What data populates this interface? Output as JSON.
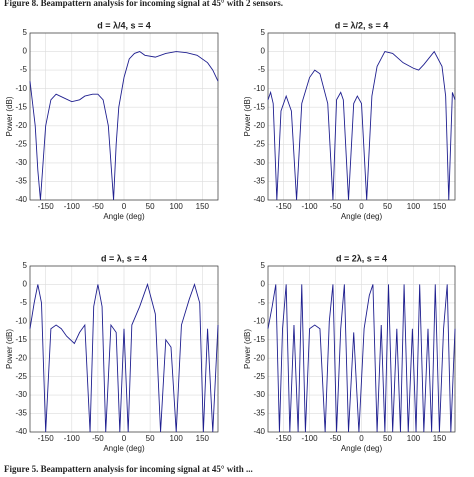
{
  "caption_top": "Figure 8. Beampattern analysis for incoming signal at 45° with 2 sensors.",
  "caption_bottom": "Figure 5. Beampattern analysis for incoming signal at 45° with ...",
  "chart_data": [
    {
      "type": "line",
      "title": "d = λ/4, s = 4",
      "x_label": "Angle (deg)",
      "y_label": "Power (dB)",
      "color": "#1f1f8f",
      "grid": true,
      "xlim": [
        -180,
        180
      ],
      "ylim": [
        -40,
        5
      ],
      "xticks": [
        -150,
        -100,
        -50,
        0,
        50,
        100,
        150
      ],
      "yticks": [
        -40,
        -35,
        -30,
        -25,
        -20,
        -15,
        -10,
        -5,
        0,
        5
      ],
      "x": [
        -180,
        -170,
        -165,
        -160,
        -150,
        -140,
        -130,
        -115,
        -100,
        -85,
        -75,
        -60,
        -50,
        -40,
        -30,
        -25,
        -20,
        -15,
        -10,
        0,
        10,
        20,
        30,
        40,
        60,
        80,
        100,
        120,
        140,
        160,
        170,
        180
      ],
      "values": [
        -8,
        -20,
        -32,
        -40,
        -20,
        -13,
        -11.5,
        -12.5,
        -13.5,
        -13,
        -12,
        -11.5,
        -11.5,
        -13,
        -20,
        -30,
        -40,
        -25,
        -15,
        -7,
        -2,
        -0.5,
        0,
        -1,
        -1.5,
        -0.5,
        0,
        -0.3,
        -1,
        -3,
        -5,
        -8
      ]
    },
    {
      "type": "line",
      "title": "d = λ/2, s = 4",
      "x_label": "Angle (deg)",
      "y_label": "Power (dB)",
      "color": "#1f1f8f",
      "grid": true,
      "xlim": [
        -180,
        180
      ],
      "ylim": [
        -40,
        5
      ],
      "xticks": [
        -150,
        -100,
        -50,
        0,
        50,
        100,
        150
      ],
      "yticks": [
        -40,
        -35,
        -30,
        -25,
        -20,
        -15,
        -10,
        -5,
        0,
        5
      ],
      "x": [
        -180,
        -175,
        -170,
        -163,
        -155,
        -145,
        -135,
        -125,
        -115,
        -100,
        -90,
        -80,
        -65,
        -55,
        -48,
        -40,
        -35,
        -25,
        -15,
        -8,
        0,
        10,
        20,
        30,
        45,
        60,
        80,
        100,
        110,
        120,
        140,
        155,
        162,
        168,
        175,
        180
      ],
      "values": [
        -13,
        -11,
        -14,
        -40,
        -16,
        -12,
        -16,
        -40,
        -14,
        -7,
        -5,
        -6,
        -14,
        -40,
        -13,
        -11,
        -13,
        -40,
        -14,
        -12,
        -14,
        -40,
        -12,
        -4,
        0,
        -0.5,
        -3,
        -4.5,
        -5,
        -3.5,
        0,
        -4,
        -12,
        -40,
        -11,
        -13
      ]
    },
    {
      "type": "line",
      "title": "d = λ, s = 4",
      "x_label": "Angle (deg)",
      "y_label": "Power (dB)",
      "color": "#1f1f8f",
      "grid": true,
      "xlim": [
        -180,
        180
      ],
      "ylim": [
        -40,
        5
      ],
      "xticks": [
        -150,
        -100,
        -50,
        0,
        50,
        100,
        150
      ],
      "yticks": [
        -40,
        -35,
        -30,
        -25,
        -20,
        -15,
        -10,
        -5,
        0,
        5
      ],
      "x": [
        -180,
        -172,
        -165,
        -158,
        -150,
        -140,
        -130,
        -120,
        -110,
        -95,
        -85,
        -75,
        -65,
        -58,
        -50,
        -42,
        -35,
        -25,
        -15,
        -8,
        0,
        8,
        15,
        30,
        45,
        60,
        70,
        80,
        90,
        100,
        110,
        125,
        135,
        145,
        152,
        160,
        170,
        180
      ],
      "values": [
        -12,
        -5,
        0,
        -5,
        -40,
        -12,
        -11,
        -12,
        -14,
        -16,
        -13,
        -11,
        -40,
        -6,
        0,
        -6,
        -40,
        -11,
        -13,
        -40,
        -12,
        -40,
        -11,
        -6,
        0,
        -8,
        -40,
        -15,
        -17,
        -40,
        -11,
        -4,
        0,
        -5,
        -40,
        -12,
        -40,
        -11
      ]
    },
    {
      "type": "line",
      "title": "d = 2λ, s = 4",
      "x_label": "Angle (deg)",
      "y_label": "Power (dB)",
      "color": "#1f1f8f",
      "grid": true,
      "xlim": [
        -180,
        180
      ],
      "ylim": [
        -40,
        5
      ],
      "xticks": [
        -150,
        -100,
        -50,
        0,
        50,
        100,
        150
      ],
      "yticks": [
        -40,
        -35,
        -30,
        -25,
        -20,
        -15,
        -10,
        -5,
        0,
        5
      ],
      "x": [
        -180,
        -172,
        -165,
        -158,
        -152,
        -145,
        -138,
        -130,
        -122,
        -115,
        -108,
        -100,
        -90,
        -80,
        -70,
        -62,
        -55,
        -48,
        -40,
        -33,
        -25,
        -15,
        -5,
        5,
        15,
        22,
        30,
        38,
        45,
        52,
        60,
        68,
        75,
        82,
        90,
        98,
        105,
        112,
        120,
        128,
        135,
        142,
        150,
        158,
        165,
        172,
        180
      ],
      "values": [
        -12,
        -6,
        0,
        -40,
        -12,
        0,
        -40,
        -11,
        -40,
        0,
        -40,
        -12,
        -11,
        -12,
        -40,
        -10,
        0,
        -40,
        -12,
        0,
        -40,
        -13,
        -40,
        -12,
        -3,
        0,
        -40,
        -11,
        -40,
        0,
        -40,
        -12,
        -40,
        0,
        -40,
        -12,
        -40,
        0,
        -40,
        -12,
        -40,
        0,
        -40,
        -12,
        0,
        -40,
        -12
      ]
    }
  ]
}
